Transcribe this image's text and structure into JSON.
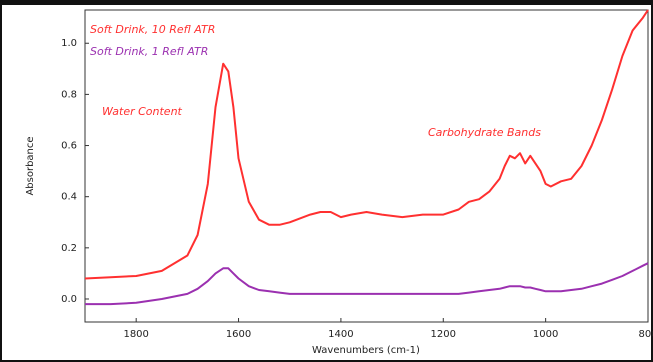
{
  "chart_data": {
    "type": "line",
    "xlabel": "Wavenumbers (cm-1)",
    "ylabel": "Absorbance",
    "annotations": [
      "Water Content",
      "Carbohydrate Bands"
    ],
    "x": [
      1900,
      1850,
      1800,
      1750,
      1700,
      1680,
      1660,
      1645,
      1630,
      1620,
      1610,
      1600,
      1580,
      1560,
      1540,
      1520,
      1500,
      1460,
      1440,
      1420,
      1400,
      1380,
      1350,
      1320,
      1280,
      1240,
      1200,
      1170,
      1150,
      1130,
      1110,
      1090,
      1080,
      1070,
      1060,
      1050,
      1040,
      1030,
      1020,
      1010,
      1000,
      990,
      970,
      950,
      930,
      910,
      890,
      870,
      850,
      830,
      810,
      800
    ],
    "series": [
      {
        "name": "Soft Drink, 10 Refl ATR",
        "color": "#ff3030",
        "values": [
          0.08,
          0.085,
          0.09,
          0.11,
          0.17,
          0.25,
          0.45,
          0.75,
          0.92,
          0.89,
          0.75,
          0.55,
          0.38,
          0.31,
          0.29,
          0.29,
          0.3,
          0.33,
          0.34,
          0.34,
          0.32,
          0.33,
          0.34,
          0.33,
          0.32,
          0.33,
          0.33,
          0.35,
          0.38,
          0.39,
          0.42,
          0.47,
          0.52,
          0.56,
          0.55,
          0.57,
          0.53,
          0.56,
          0.53,
          0.5,
          0.45,
          0.44,
          0.46,
          0.47,
          0.52,
          0.6,
          0.7,
          0.82,
          0.95,
          1.05,
          1.1,
          1.13
        ]
      },
      {
        "name": "Soft Drink, 1 Refl ATR",
        "color": "#9b30b0",
        "values": [
          -0.02,
          -0.02,
          -0.015,
          0.0,
          0.02,
          0.04,
          0.07,
          0.1,
          0.12,
          0.12,
          0.1,
          0.08,
          0.05,
          0.035,
          0.03,
          0.025,
          0.02,
          0.02,
          0.02,
          0.02,
          0.02,
          0.02,
          0.02,
          0.02,
          0.02,
          0.02,
          0.02,
          0.02,
          0.025,
          0.03,
          0.035,
          0.04,
          0.045,
          0.05,
          0.05,
          0.05,
          0.045,
          0.045,
          0.04,
          0.035,
          0.03,
          0.03,
          0.03,
          0.035,
          0.04,
          0.05,
          0.06,
          0.075,
          0.09,
          0.11,
          0.13,
          0.14
        ]
      }
    ],
    "xlim": [
      1900,
      800
    ],
    "xticks": [
      1800,
      1600,
      1400,
      1200,
      1000,
      800
    ],
    "ylim": [
      -0.09,
      1.13
    ],
    "yticks": [
      {
        "value": 0,
        "label": "0.0"
      },
      0.2,
      0.4,
      0.6,
      0.8,
      {
        "value": 1,
        "label": "1.0"
      }
    ],
    "grid": false
  }
}
